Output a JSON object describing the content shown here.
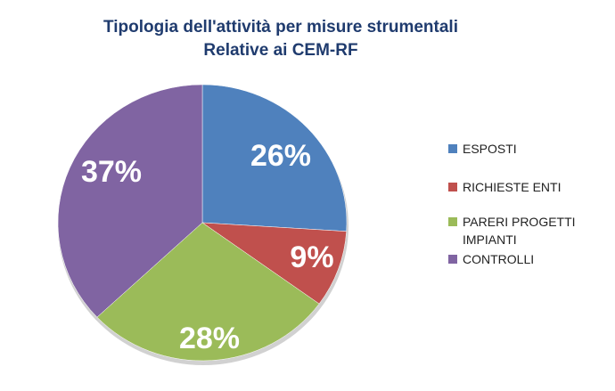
{
  "chart_data": {
    "type": "pie",
    "title": "Tipologia dell'attività per misure strumentali",
    "subtitle": "Relative ai CEM-RF",
    "categories": [
      "ESPOSTI",
      "RICHIESTE ENTI",
      "PARERI PROGETTI IMPIANTI",
      "CONTROLLI"
    ],
    "values": [
      26,
      9,
      28,
      37
    ],
    "value_labels": [
      "26%",
      "9%",
      "28%",
      "37%"
    ],
    "colors": [
      "#4f81bd",
      "#c0504d",
      "#9bbb59",
      "#8064a2"
    ],
    "legend_position": "right"
  }
}
